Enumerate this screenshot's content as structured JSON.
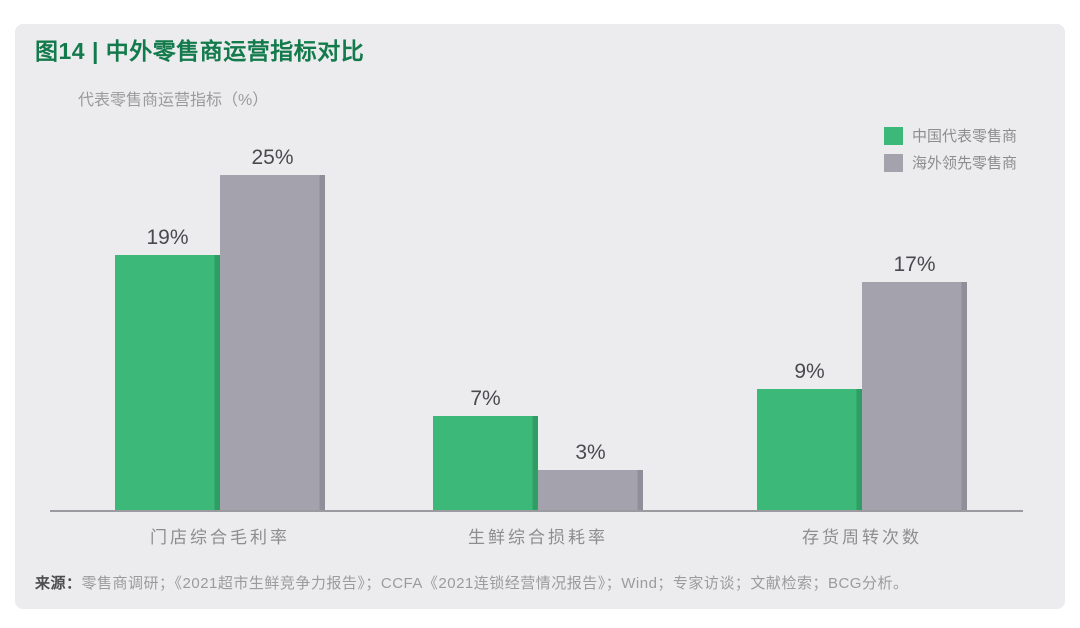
{
  "page": {
    "title": "图14 | 中外零售商运营指标对比",
    "source_label": "来源：",
    "source_text": "零售商调研；《2021超市生鲜竞争力报告》；CCFA《2021连锁经营情况报告》；Wind；专家访谈；文献检索；BCG分析。"
  },
  "colors": {
    "title_green": "#127a4b",
    "card_background": "#ececee",
    "axis_line": "#9b9aa0",
    "value_label": "#4a4a4e",
    "muted_text": "#8d8d90"
  },
  "chart_data": {
    "type": "bar",
    "title": "图14 | 中外零售商运营指标对比",
    "ylabel": "代表零售商运营指标（%）",
    "unit": "%",
    "categories": [
      "门店综合毛利率",
      "生鲜综合损耗率",
      "存货周转次数"
    ],
    "series": [
      {
        "name": "中国代表零售商",
        "color": "#3cb878",
        "edge_color": "#2f9e64",
        "values": [
          19,
          7,
          9
        ],
        "labels": [
          "19%",
          "7%",
          "9%"
        ]
      },
      {
        "name": "海外领先零售商",
        "color": "#a3a2ad",
        "edge_color": "#8f8e99",
        "values": [
          25,
          3,
          17
        ],
        "labels": [
          "25%",
          "3%",
          "17%"
        ]
      }
    ],
    "ylim": [
      0,
      27
    ],
    "grid": false,
    "legend_position": "top-right",
    "value_labels": true
  }
}
